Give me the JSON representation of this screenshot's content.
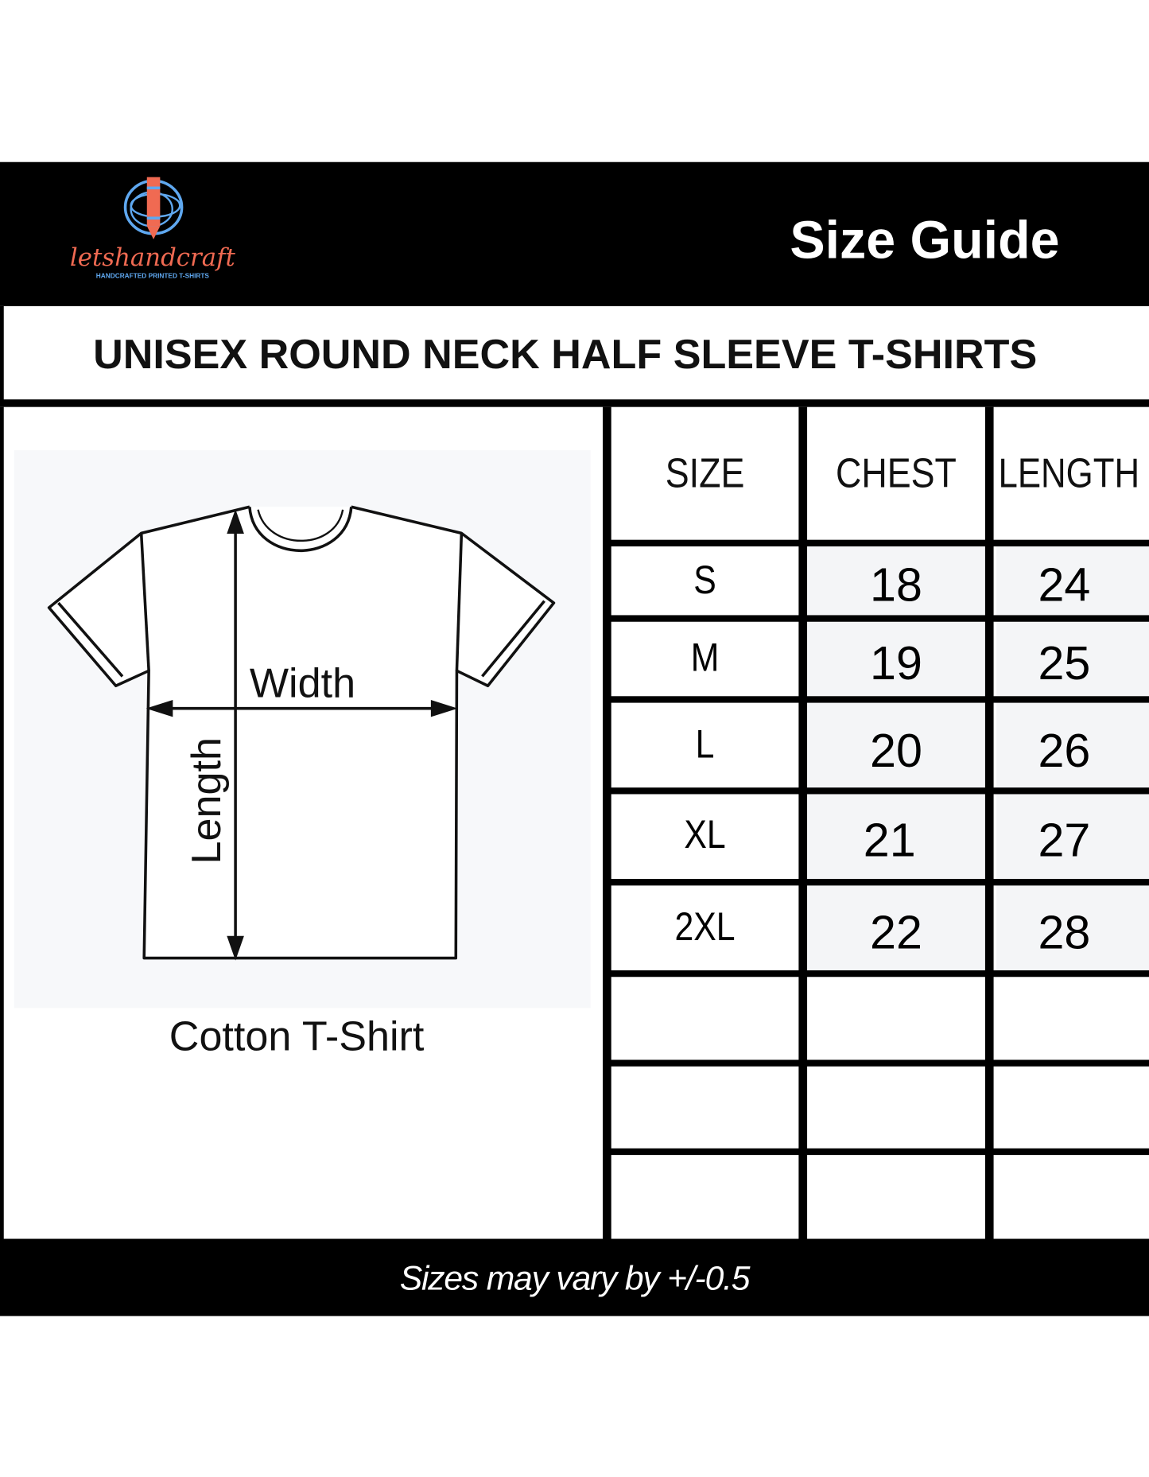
{
  "logo": {
    "brand": "letshandcraft",
    "tagline": "HANDCRAFTED PRINTED T-SHIRTS"
  },
  "header": {
    "title": "Size Guide"
  },
  "subtitle": "UNISEX  ROUND NECK HALF SLEEVE T-SHIRTS",
  "diagram": {
    "width_label": "Width",
    "length_label": "Length",
    "caption": "Cotton T-Shirt"
  },
  "table": {
    "headers": [
      "SIZE",
      "CHEST",
      "LENGTH"
    ],
    "rows": [
      {
        "size": "S",
        "chest": "18",
        "length": "24"
      },
      {
        "size": "M",
        "chest": "19",
        "length": "25"
      },
      {
        "size": "L",
        "chest": "20",
        "length": "26"
      },
      {
        "size": "XL",
        "chest": "21",
        "length": "27"
      },
      {
        "size": "2XL",
        "chest": "22",
        "length": "28"
      }
    ]
  },
  "footer": {
    "note": "Sizes may vary by +/-0.5"
  },
  "colors": {
    "logo_orange": "#f06a52",
    "logo_blue": "#5fa8f0"
  }
}
